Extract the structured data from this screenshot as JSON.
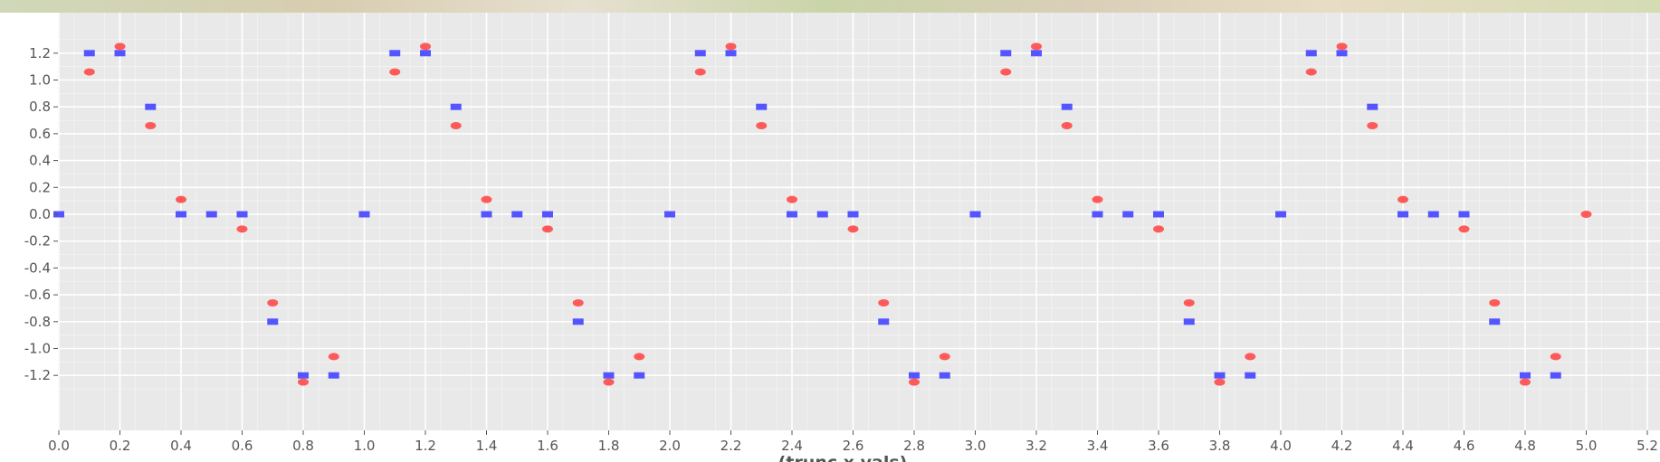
{
  "chart_data": {
    "type": "scatter",
    "xlabel": "(trunc x vals)",
    "ylabel": "",
    "xlim": [
      0.0,
      5.2
    ],
    "ylim": [
      -1.37,
      1.28
    ],
    "grid": true,
    "x_ticks": [
      "0.0",
      "0.2",
      "0.4",
      "0.6",
      "0.8",
      "1.0",
      "1.2",
      "1.4",
      "1.6",
      "1.8",
      "2.0",
      "2.2",
      "2.4",
      "2.6",
      "2.8",
      "3.0",
      "3.2",
      "3.4",
      "3.6",
      "3.8",
      "4.0",
      "4.2",
      "4.4",
      "4.6",
      "4.8",
      "5.0",
      "5.2"
    ],
    "y_ticks": [
      "1.2",
      "1.0",
      "0.8",
      "0.6",
      "0.4",
      "0.2",
      "0.0",
      "-0.2",
      "-0.4",
      "-0.6",
      "-0.8",
      "-1.0",
      "-1.2"
    ],
    "colors": {
      "series_a": "#ff5a5a",
      "series_b": "#5555ff",
      "background": "#e9e9e9",
      "grid": "#ffffff"
    },
    "series": [
      {
        "marker": "ellipse",
        "color": "#ff5a5a",
        "x": [
          0.1,
          0.2,
          0.3,
          0.4,
          0.6,
          0.7,
          0.8,
          0.9,
          1.1,
          1.2,
          1.3,
          1.4,
          1.6,
          1.7,
          1.8,
          1.9,
          2.1,
          2.2,
          2.3,
          2.4,
          2.6,
          2.7,
          2.8,
          2.9,
          3.1,
          3.2,
          3.3,
          3.4,
          3.6,
          3.7,
          3.8,
          3.9,
          4.1,
          4.2,
          4.3,
          4.4,
          4.6,
          4.7,
          4.8,
          4.9,
          5.0
        ],
        "y": [
          1.06,
          1.25,
          0.66,
          0.11,
          -0.11,
          -0.66,
          -1.25,
          -1.06,
          1.06,
          1.25,
          0.66,
          0.11,
          -0.11,
          -0.66,
          -1.25,
          -1.06,
          1.06,
          1.25,
          0.66,
          0.11,
          -0.11,
          -0.66,
          -1.25,
          -1.06,
          1.06,
          1.25,
          0.66,
          0.11,
          -0.11,
          -0.66,
          -1.25,
          -1.06,
          1.06,
          1.25,
          0.66,
          0.11,
          -0.11,
          -0.66,
          -1.25,
          -1.06,
          0.0
        ]
      },
      {
        "marker": "rect",
        "color": "#5555ff",
        "x": [
          0.0,
          0.1,
          0.2,
          0.3,
          0.4,
          0.5,
          0.6,
          0.7,
          0.8,
          0.9,
          1.0,
          1.1,
          1.2,
          1.3,
          1.4,
          1.5,
          1.6,
          1.7,
          1.8,
          1.9,
          2.0,
          2.1,
          2.2,
          2.3,
          2.4,
          2.5,
          2.6,
          2.7,
          2.8,
          2.9,
          3.0,
          3.1,
          3.2,
          3.3,
          3.4,
          3.5,
          3.6,
          3.7,
          3.8,
          3.9,
          4.0,
          4.1,
          4.2,
          4.3,
          4.4,
          4.5,
          4.6,
          4.7,
          4.8,
          4.9
        ],
        "y": [
          0.0,
          1.2,
          1.2,
          0.8,
          0.0,
          0.0,
          0.0,
          -0.8,
          -1.2,
          -1.2,
          0.0,
          1.2,
          1.2,
          0.8,
          0.0,
          0.0,
          0.0,
          -0.8,
          -1.2,
          -1.2,
          0.0,
          1.2,
          1.2,
          0.8,
          0.0,
          0.0,
          0.0,
          -0.8,
          -1.2,
          -1.2,
          0.0,
          1.2,
          1.2,
          0.8,
          0.0,
          0.0,
          0.0,
          -0.8,
          -1.2,
          -1.2,
          0.0,
          1.2,
          1.2,
          0.8,
          0.0,
          0.0,
          0.0,
          -0.8,
          -1.2,
          -1.2
        ]
      }
    ]
  }
}
